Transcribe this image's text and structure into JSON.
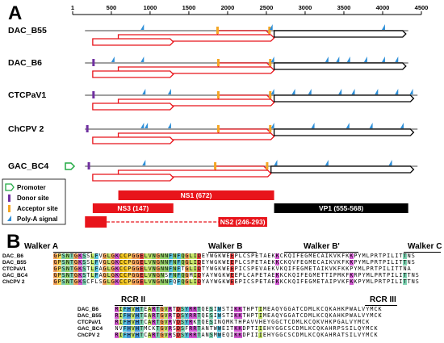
{
  "panel_a": {
    "label": "A",
    "axis": {
      "min": 1,
      "max": 4500,
      "ticks": [
        1,
        500,
        1000,
        1500,
        2000,
        2500,
        3000,
        3500,
        4000,
        4500
      ],
      "tick_labels": [
        "1",
        "500",
        "1000",
        "1500",
        "2000",
        "2500",
        "3000",
        "3500",
        "4000",
        "4500"
      ]
    },
    "genomes": [
      {
        "name": "DAC_B55",
        "length": 4330,
        "promoter": false,
        "donor": [],
        "acceptor": [
          1870,
          2540
        ],
        "polya": [
          900,
          2560,
          4010
        ],
        "ns1_end": 2600,
        "vp1_start": 2600,
        "vp1_end": 4300,
        "ns2_start": 1870,
        "ns3_end": 2540
      },
      {
        "name": "DAC_B6",
        "length": 4330,
        "promoter": false,
        "donor": [
          270
        ],
        "acceptor": [
          1880,
          2550
        ],
        "polya": [
          520,
          900,
          2580,
          3280,
          3420,
          3560,
          3780,
          4010,
          4180
        ],
        "ns1_end": 2600,
        "vp1_start": 2600,
        "vp1_end": 4300,
        "ns2_start": 1880,
        "ns3_end": 2550
      },
      {
        "name": "CTCPaV1",
        "length": 4450,
        "promoter": false,
        "donor": [
          270
        ],
        "acceptor": [
          1880,
          2550
        ],
        "polya": [
          920,
          1250,
          2580,
          2850,
          3060,
          3450,
          3620,
          3920,
          4180,
          4370
        ],
        "ns1_end": 2600,
        "vp1_start": 2600,
        "vp1_end": 4400,
        "ns2_start": 1880,
        "ns3_end": 2550
      },
      {
        "name": "ChCPV 2",
        "length": 4450,
        "promoter": false,
        "donor": [
          190
        ],
        "acceptor": [
          1880,
          2550
        ],
        "polya": [
          900,
          950,
          1250,
          2580,
          3100,
          3550,
          3850,
          4250
        ],
        "ns1_end": 2600,
        "vp1_start": 2600,
        "vp1_end": 4400,
        "ns2_start": 1880,
        "ns3_end": 2550
      },
      {
        "name": "GAC_BC4",
        "length": 4450,
        "promoter": true,
        "donor": [
          210
        ],
        "acceptor": [
          1840,
          2510
        ],
        "polya": [
          920,
          2620,
          3280,
          4100
        ],
        "ns1_end": 2560,
        "vp1_start": 2560,
        "vp1_end": 4400,
        "ns2_start": 1840,
        "ns3_end": 2510
      }
    ],
    "legend": [
      {
        "icon": "promoter",
        "label": "Promoter",
        "color": "#22aa44"
      },
      {
        "icon": "donor",
        "label": "Donor site",
        "color": "#7030a0"
      },
      {
        "icon": "acceptor",
        "label": "Acceptor site",
        "color": "#f5a623"
      },
      {
        "icon": "polya",
        "label": "Poly-A signal",
        "color": "#2e8fd8"
      }
    ],
    "proteins": {
      "ns1": {
        "label": "NS1 (672)",
        "start": 590,
        "end": 2600
      },
      "ns3": {
        "label": "NS3 (147)",
        "start": 260,
        "end": 1300
      },
      "vp1": {
        "label": "VP1 (555-568)",
        "start": 2600,
        "end": 4330
      },
      "ns2": {
        "label": "NS2 (246-293)",
        "exon1_start": 160,
        "exon1_end": 440,
        "exon2_start": 1880,
        "exon2_end": 2510
      }
    },
    "colors": {
      "backbone": "#a0a0a0",
      "orf_red": "#e8141b",
      "vp1_black": "#000000"
    }
  },
  "panel_b": {
    "label": "B",
    "block1": {
      "motifs": [
        "Walker A",
        "Walker B",
        "Walker B'",
        "Walker C"
      ],
      "rows": [
        {
          "name": "DAC_B6",
          "seq": "GPSNTGKSSLFVGLGKCCPGGELVNGNNFNFQGLIDEYWGKWEEPLCSPETAEKKCKQIFEGMECAIKVKFKKPYMLPRTPILITTNS"
        },
        {
          "name": "DAC_B55",
          "seq": "GPSNTGKSSLFVGLGKCCPGGELVNGNNFNFQGLIDEYWGKWEEPLCSPETAEKKCKQVFEGMECAIKVKFKKPYMLPRTPILITTNS"
        },
        {
          "name": "CTCPaV1",
          "seq": "GPSNTGKSTLFAGLGKCCPGGELVNGNNFNFTGLIDTYWGKWEEPICSPEVAEKVKQIFEGMETAIKVKFKKPYMLPRTPILITTNA"
        },
        {
          "name": "GAC_BC4",
          "seq": "GPSNTGKSTLFAGLGKCCPGGELVNGNSFNFQGMIDYAYWGKWEEPLCAPETAEKKCKQIFEGMETTIPMKFKRPYMLPRTPILITTNS"
        },
        {
          "name": "ChCPV 2",
          "seq": "GPSNTGKSCFLSGLGKCCPGGELVNGNNFQFQGLIDYAYWGKWEEPICSPETAEKKCKQIFEGMETAIPVKFKKPYMLPRTPILITTNS"
        }
      ]
    },
    "block2": {
      "motifs": [
        "RCR II",
        "RCR III"
      ],
      "rows": [
        {
          "name": "DAC_B6",
          "seq": "RIFHVHTEARTGVRTDSYRRTQESIWSTIKKTHPTIMEAQYGGATCDMLKCQKAHKPWALVYMCK"
        },
        {
          "name": "DAC_B55",
          "seq": "RIFHVHTEARTGVRTDSYRRTQESIWSTIKKTHPTIMEAQYGGATCDMLKCQKAHKPWALVYMCK"
        },
        {
          "name": "CTCPaV1",
          "seq": "RIFHVHTCARTGVRVDSYRKTQESINQMKTHPAVVHEYGGCTCDMLKCQKVHKPGALVYMCK"
        },
        {
          "name": "GAC_BC4",
          "seq": "NVFHVHTMCKTGVRSDSFRRTANTWWEITKKDPTIIEHYGGCSCDMLKCQKAHRPSSILQYMCK"
        },
        {
          "name": "ChCPV 2",
          "seq": "RIFHVHTCARTGVRSDSYRRTANSMWEQIKKDPIIIEHYGGCSCDMLKCQKAHRATSILVYMCK"
        }
      ]
    }
  }
}
